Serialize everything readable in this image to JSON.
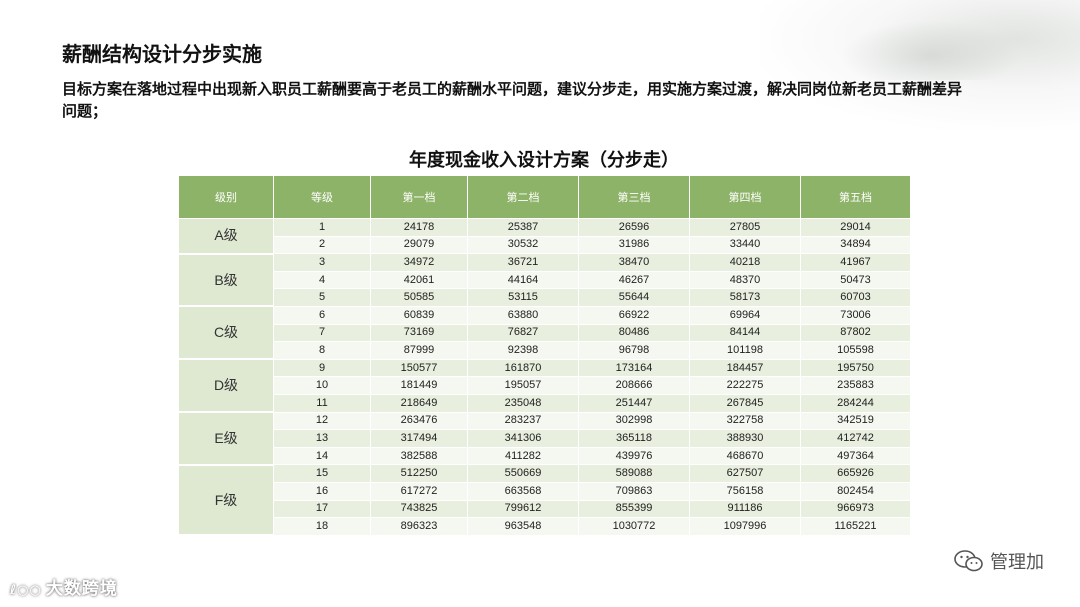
{
  "header": {
    "title": "薪酬结构设计分步实施",
    "subtitle": "目标方案在落地过程中出现新入职员工薪酬要高于老员工的薪酬水平问题，建议分步走，用实施方案过渡，解决同岗位新老员工薪酬差异问题；"
  },
  "table": {
    "title": "年度现金收入设计方案（分步走）",
    "columns": [
      "级别",
      "等级",
      "第一档",
      "第二档",
      "第三档",
      "第四档",
      "第五档"
    ],
    "groups": [
      {
        "grade": "A级",
        "rows": [
          {
            "level": "1",
            "values": [
              "24178",
              "25387",
              "26596",
              "27805",
              "29014"
            ]
          },
          {
            "level": "2",
            "values": [
              "29079",
              "30532",
              "31986",
              "33440",
              "34894"
            ]
          }
        ]
      },
      {
        "grade": "B级",
        "rows": [
          {
            "level": "3",
            "values": [
              "34972",
              "36721",
              "38470",
              "40218",
              "41967"
            ]
          },
          {
            "level": "4",
            "values": [
              "42061",
              "44164",
              "46267",
              "48370",
              "50473"
            ]
          },
          {
            "level": "5",
            "values": [
              "50585",
              "53115",
              "55644",
              "58173",
              "60703"
            ]
          }
        ]
      },
      {
        "grade": "C级",
        "rows": [
          {
            "level": "6",
            "values": [
              "60839",
              "63880",
              "66922",
              "69964",
              "73006"
            ]
          },
          {
            "level": "7",
            "values": [
              "73169",
              "76827",
              "80486",
              "84144",
              "87802"
            ]
          },
          {
            "level": "8",
            "values": [
              "87999",
              "92398",
              "96798",
              "101198",
              "105598"
            ]
          }
        ]
      },
      {
        "grade": "D级",
        "rows": [
          {
            "level": "9",
            "values": [
              "150577",
              "161870",
              "173164",
              "184457",
              "195750"
            ]
          },
          {
            "level": "10",
            "values": [
              "181449",
              "195057",
              "208666",
              "222275",
              "235883"
            ]
          },
          {
            "level": "11",
            "values": [
              "218649",
              "235048",
              "251447",
              "267845",
              "284244"
            ]
          }
        ]
      },
      {
        "grade": "E级",
        "rows": [
          {
            "level": "12",
            "values": [
              "263476",
              "283237",
              "302998",
              "322758",
              "342519"
            ]
          },
          {
            "level": "13",
            "values": [
              "317494",
              "341306",
              "365118",
              "388930",
              "412742"
            ]
          },
          {
            "level": "14",
            "values": [
              "382588",
              "411282",
              "439976",
              "468670",
              "497364"
            ]
          }
        ]
      },
      {
        "grade": "F级",
        "rows": [
          {
            "level": "15",
            "values": [
              "512250",
              "550669",
              "589088",
              "627507",
              "665926"
            ]
          },
          {
            "level": "16",
            "values": [
              "617272",
              "663568",
              "709863",
              "756158",
              "802454"
            ]
          },
          {
            "level": "17",
            "values": [
              "743825",
              "799612",
              "855399",
              "911186",
              "966973"
            ]
          },
          {
            "level": "18",
            "values": [
              "896323",
              "963548",
              "1030772",
              "1097996",
              "1165221"
            ]
          }
        ]
      }
    ]
  },
  "watermarks": {
    "left": "大数跨境",
    "right": "管理加",
    "right_icon": "wechat-icon"
  },
  "colors": {
    "header_green": "#8db368",
    "grade_cell": "#dfe9d2",
    "row_odd": "#e8efde",
    "row_even": "#f5f8f1"
  }
}
